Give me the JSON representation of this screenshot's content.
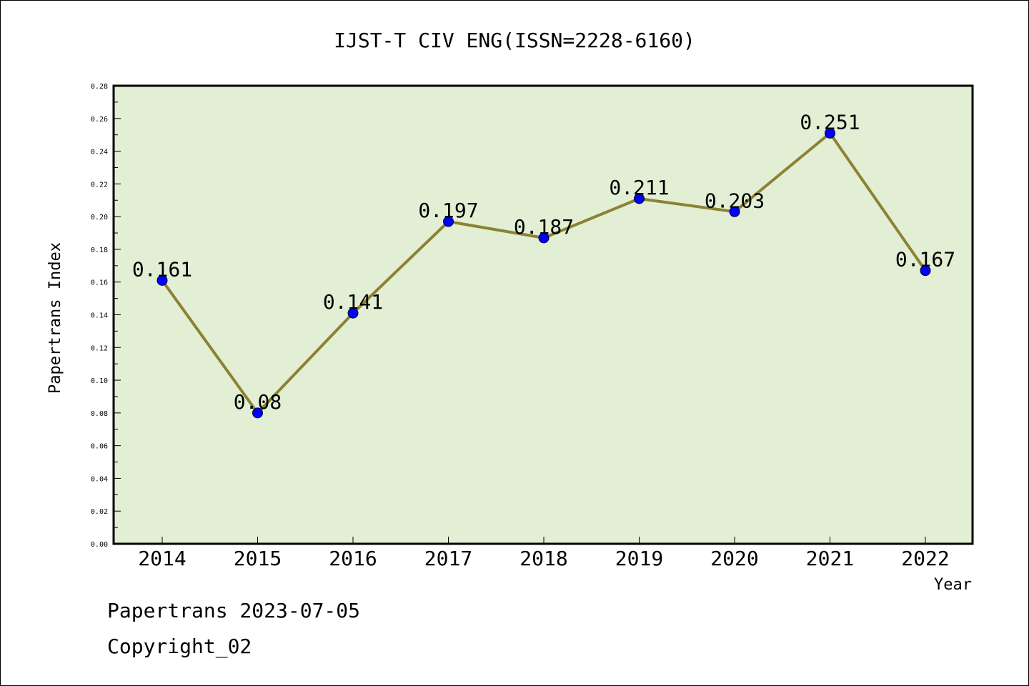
{
  "chart_data": {
    "type": "line",
    "title": "IJST-T CIV ENG(ISSN=2228-6160)",
    "xlabel": "Year",
    "ylabel": "Papertrans Index",
    "categories": [
      "2014",
      "2015",
      "2016",
      "2017",
      "2018",
      "2019",
      "2020",
      "2021",
      "2022"
    ],
    "series": [
      {
        "values": [
          0.161,
          0.08,
          0.141,
          0.197,
          0.187,
          0.211,
          0.203,
          0.251,
          0.167
        ],
        "labels": [
          "0.161",
          "0.08",
          "0.141",
          "0.197",
          "0.187",
          "0.211",
          "0.203",
          "0.251",
          "0.167"
        ]
      }
    ],
    "ylim": [
      0,
      0.28
    ],
    "yticks": [
      "0.00",
      "0.02",
      "0.04",
      "0.06",
      "0.08",
      "0.10",
      "0.12",
      "0.14",
      "0.16",
      "0.18",
      "0.20",
      "0.22",
      "0.24",
      "0.26",
      "0.28"
    ],
    "grid": false,
    "colors": {
      "plot_background": "#e2efd5",
      "line": "#8c8232",
      "marker": "#0000ff"
    }
  },
  "footer": {
    "line1": "Papertrans 2023-07-05",
    "line2": "Copyright_02"
  }
}
